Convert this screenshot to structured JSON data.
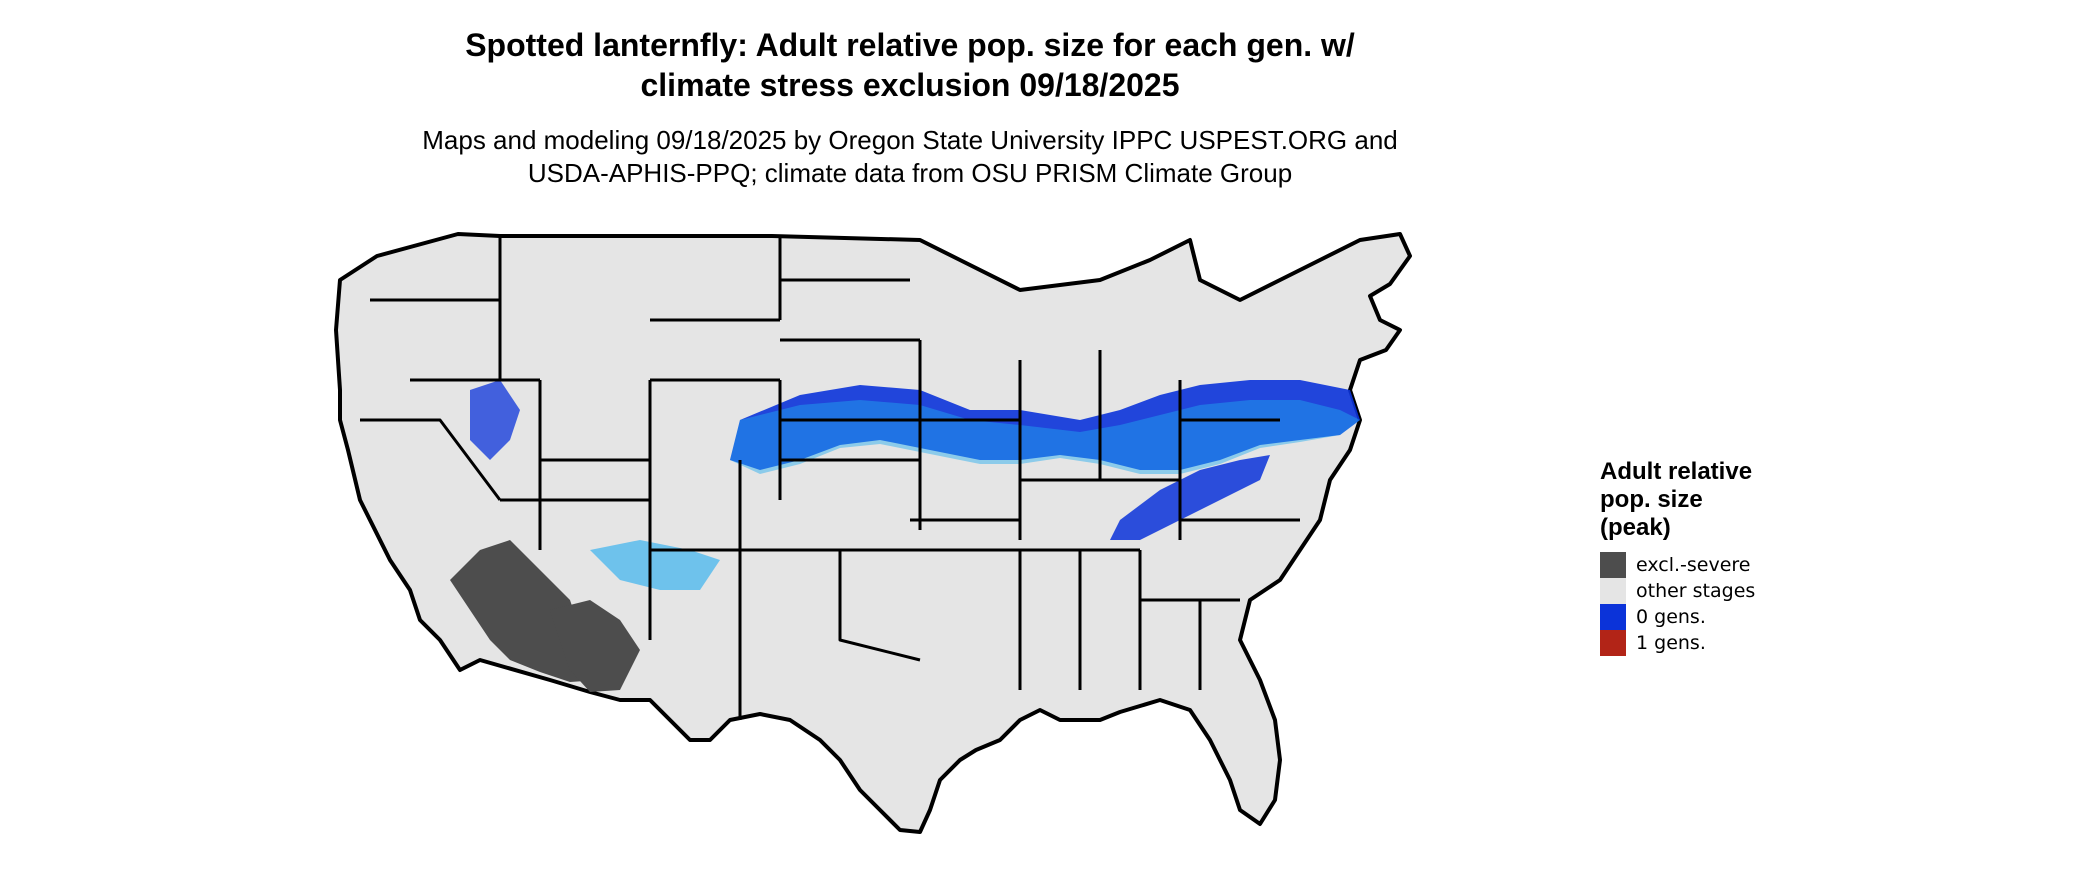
{
  "title_line1": "Spotted lanternfly: Adult relative pop. size for each gen. w/",
  "title_line2": "climate stress exclusion 09/18/2025",
  "subtitle_line1": "Maps and modeling 09/18/2025 by Oregon State University IPPC USPEST.ORG and",
  "subtitle_line2": "USDA-APHIS-PPQ; climate data from OSU PRISM Climate Group",
  "legend": {
    "title_lines": [
      "Adult relative",
      "pop. size",
      "(peak)"
    ],
    "items": [
      {
        "label": "excl.-severe",
        "color": "#4d4d4d"
      },
      {
        "label": "other stages",
        "color": "#e5e5e5"
      },
      {
        "label": "0 gens.",
        "color": "#0b33d9"
      },
      {
        "label": "1 gens.",
        "color": "#b22417"
      }
    ]
  },
  "colors": {
    "land": "#e5e5e5",
    "border": "#000000",
    "excluded": "#4d4d4d",
    "zero_gen_dark": "#0b33d9",
    "zero_gen_light": "#1eaaf0"
  }
}
